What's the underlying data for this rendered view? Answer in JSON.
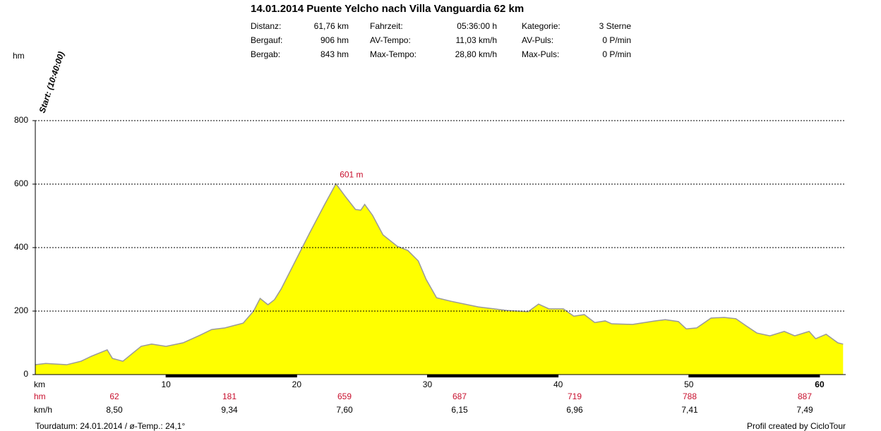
{
  "chart_data": {
    "type": "area",
    "title": "14.01.2014 Puente Yelcho nach Villa Vanguardia 62 km",
    "stats": [
      [
        "Distanz:",
        "61,76 km",
        "Fahrzeit:",
        "05:36:00 h",
        "Kategorie:",
        "3 Sterne"
      ],
      [
        "Bergauf:",
        "906 hm",
        "AV-Tempo:",
        "11,03 km/h",
        "AV-Puls:",
        "0 P/min"
      ],
      [
        "Bergab:",
        "843 hm",
        "Max-Tempo:",
        "28,80 km/h",
        "Max-Puls:",
        "0 P/min"
      ]
    ],
    "ylabel": "hm",
    "xlabel": "km",
    "start_label": "Start: (10:40:00)",
    "peak_label": "601 m",
    "x": [
      0,
      0.8,
      2.4,
      3.5,
      4.3,
      5.5,
      5.9,
      6.7,
      7.5,
      8.1,
      8.9,
      10,
      11.3,
      12.6,
      13.5,
      14.5,
      15.9,
      16.7,
      17.2,
      17.8,
      18.3,
      18.8,
      19.9,
      21,
      22.1,
      23,
      23.7,
      24.5,
      24.9,
      25.2,
      25.8,
      26.6,
      27.7,
      28.5,
      29.3,
      29.9,
      30.7,
      31.8,
      33.9,
      36.1,
      37.7,
      38.5,
      39.3,
      40.4,
      41.2,
      42,
      42.8,
      43.6,
      44.1,
      45.7,
      47.4,
      48.2,
      49.2,
      49.8,
      50.6,
      51.7,
      52.7,
      53.6,
      54.4,
      55.2,
      56.2,
      57.3,
      58.1,
      59.2,
      59.7,
      60.5,
      61.4,
      61.8
    ],
    "values": [
      31,
      35,
      31,
      42,
      58,
      78,
      51,
      42,
      69,
      89,
      96,
      89,
      100,
      124,
      142,
      147,
      162,
      200,
      240,
      220,
      236,
      269,
      358,
      447,
      533,
      601,
      562,
      520,
      518,
      536,
      502,
      440,
      404,
      391,
      358,
      300,
      242,
      231,
      213,
      202,
      198,
      222,
      207,
      207,
      184,
      189,
      164,
      169,
      160,
      158,
      169,
      173,
      167,
      144,
      147,
      178,
      180,
      176,
      153,
      131,
      122,
      136,
      122,
      136,
      113,
      127,
      100,
      96
    ],
    "color": "#ffff00",
    "line_color": "#999999",
    "xlim": [
      0,
      62
    ],
    "xticks": [
      10,
      20,
      30,
      40,
      50,
      60
    ],
    "ylim": [
      0,
      800
    ],
    "yticks": [
      0,
      200,
      400,
      600,
      800
    ],
    "grid": true,
    "summary_hm_label": "hm",
    "summary_hm": [
      "62",
      "181",
      "659",
      "687",
      "719",
      "788",
      "887"
    ],
    "summary_kmh_label": "km/h",
    "summary_kmh": [
      "8,50",
      "9,34",
      "7,60",
      "6,15",
      "6,96",
      "7,41",
      "7,49"
    ],
    "footer_left": "Tourdatum: 24.01.2014  /  ø-Temp.: 24,1°",
    "footer_right": "Profil created by CicloTour"
  }
}
